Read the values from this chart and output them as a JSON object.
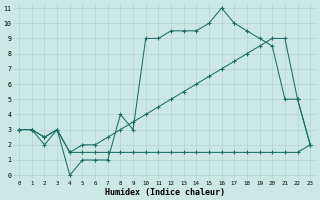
{
  "xlabel": "Humidex (Indice chaleur)",
  "bg_color": "#cce8e4",
  "grid_color": "#aacfca",
  "line_color": "#1a6e64",
  "xlim": [
    -0.5,
    23.5
  ],
  "ylim": [
    -0.3,
    11.3
  ],
  "xticks": [
    0,
    1,
    2,
    3,
    4,
    5,
    6,
    7,
    8,
    9,
    10,
    11,
    12,
    13,
    14,
    15,
    16,
    17,
    18,
    19,
    20,
    21,
    22,
    23
  ],
  "yticks": [
    0,
    1,
    2,
    3,
    4,
    5,
    6,
    7,
    8,
    9,
    10,
    11
  ],
  "line1_x": [
    0,
    1,
    2,
    3,
    4,
    5,
    6,
    7,
    8,
    9,
    10,
    11,
    12,
    13,
    14,
    15,
    16,
    17,
    18,
    19,
    20,
    21,
    22,
    23
  ],
  "line1_y": [
    3,
    3,
    2,
    3,
    0,
    1,
    1,
    1,
    4,
    3,
    9,
    9,
    9.5,
    9.5,
    9.5,
    10,
    11,
    10,
    9.5,
    9,
    8.5,
    5,
    5,
    2
  ],
  "line2_x": [
    0,
    1,
    2,
    3,
    4,
    5,
    6,
    7,
    8,
    9,
    10,
    11,
    12,
    13,
    14,
    15,
    16,
    17,
    18,
    19,
    20,
    21,
    22,
    23
  ],
  "line2_y": [
    3,
    3,
    2.5,
    3,
    1.5,
    2,
    2,
    2.5,
    3,
    3.5,
    4,
    4.5,
    5,
    5.5,
    6,
    6.5,
    7,
    7.5,
    8,
    8.5,
    9,
    9,
    5,
    2
  ],
  "line3_x": [
    0,
    1,
    2,
    3,
    4,
    5,
    6,
    7,
    8,
    9,
    10,
    11,
    12,
    13,
    14,
    15,
    16,
    17,
    18,
    19,
    20,
    21,
    22,
    23
  ],
  "line3_y": [
    3,
    3,
    2.5,
    3,
    1.5,
    1.5,
    1.5,
    1.5,
    1.5,
    1.5,
    1.5,
    1.5,
    1.5,
    1.5,
    1.5,
    1.5,
    1.5,
    1.5,
    1.5,
    1.5,
    1.5,
    1.5,
    1.5,
    2
  ]
}
